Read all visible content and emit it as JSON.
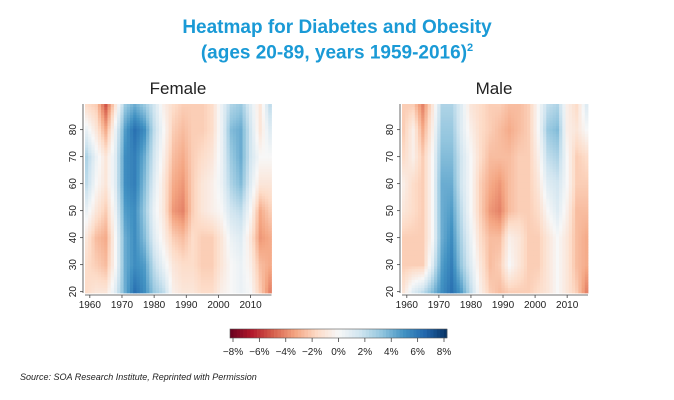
{
  "title_line1": "Heatmap for Diabetes and Obesity",
  "title_line2": "(ages 20-89, years 1959-2016)",
  "title_sup": "2",
  "source": "Source: SOA Research Institute, Reprinted with Permission",
  "chart_data": {
    "type": "heatmap",
    "x_range": [
      1959,
      2016
    ],
    "y_range": [
      20,
      89
    ],
    "x_ticks": [
      "1960",
      "1970",
      "1980",
      "1990",
      "2000",
      "2010"
    ],
    "y_ticks": [
      "20",
      "30",
      "40",
      "50",
      "60",
      "70",
      "80"
    ],
    "colorbar": {
      "range": [
        -8,
        8
      ],
      "ticks": [
        "−8%",
        "−6%",
        "−4%",
        "−2%",
        "0%",
        "2%",
        "4%",
        "6%",
        "8%"
      ],
      "colors": [
        "#67001f",
        "#b2182b",
        "#d6604d",
        "#f4a582",
        "#fddbc7",
        "#f7f7f7",
        "#d1e5f0",
        "#92c5de",
        "#4393c3",
        "#2166ac",
        "#053061"
      ]
    },
    "grid_years": [
      1959,
      1962,
      1965,
      1968,
      1971,
      1974,
      1977,
      1980,
      1983,
      1986,
      1989,
      1992,
      1995,
      1998,
      2001,
      2004,
      2007,
      2010,
      2013,
      2016
    ],
    "grid_ages": [
      20,
      30,
      40,
      50,
      60,
      70,
      80,
      89
    ],
    "panels": [
      {
        "name": "Female",
        "values": [
          [
            -1.5,
            -1,
            -1,
            1,
            4,
            6,
            5,
            3,
            2,
            -0.5,
            -1,
            -1,
            -1.5,
            -1.5,
            -0.5,
            0,
            0.5,
            0,
            -2,
            -4
          ],
          [
            -1.5,
            -2,
            -2.5,
            0,
            4,
            5,
            4.5,
            2,
            0.5,
            -1,
            -1.5,
            -1.5,
            -2,
            -2,
            -1,
            0,
            0.5,
            -0.5,
            -2.5,
            -3
          ],
          [
            -1,
            -2.5,
            -3,
            0,
            4,
            5,
            3.5,
            1,
            -0.5,
            -2,
            -2.5,
            -1.5,
            -2,
            -2,
            -1,
            0.5,
            1,
            -1,
            -3.5,
            -3
          ],
          [
            0.5,
            -1,
            -2,
            0.5,
            4.5,
            5,
            3,
            0.5,
            -1,
            -3.5,
            -4,
            -2,
            -1,
            -0.5,
            0,
            1.5,
            2,
            0,
            -3,
            -2
          ],
          [
            2,
            0,
            -1,
            1,
            5,
            5.5,
            3.5,
            1,
            -1,
            -3,
            -3.5,
            -2,
            -1,
            -0.5,
            0.5,
            2.5,
            3.5,
            1,
            -1,
            -1
          ],
          [
            2.5,
            0.5,
            -1,
            1,
            5,
            5.5,
            4,
            1.5,
            -0.5,
            -2.5,
            -3,
            -2,
            -1.5,
            -1,
            0.5,
            3,
            4,
            1.5,
            0,
            0
          ],
          [
            0.5,
            -1,
            -3,
            0.5,
            4.5,
            6,
            5,
            2,
            0,
            -2,
            -2.5,
            -2,
            -2,
            -1.5,
            0.5,
            3.5,
            4,
            1.5,
            -1,
            1
          ],
          [
            -1.5,
            -2,
            -5,
            -1,
            3,
            4,
            3,
            1.5,
            -0.5,
            -1.5,
            -2,
            -2,
            -2,
            -1.5,
            0.5,
            2.5,
            3,
            1,
            -1,
            2
          ]
        ]
      },
      {
        "name": "Male",
        "values": [
          [
            -1,
            1,
            2,
            3.5,
            5,
            6,
            4.5,
            2,
            -0.5,
            -2,
            -2.5,
            -2,
            -2,
            -2,
            -1.5,
            -1,
            0,
            -1,
            -2,
            -4
          ],
          [
            -2,
            -2,
            -2,
            1,
            4.5,
            5.5,
            3,
            1,
            -1,
            -2.5,
            -2,
            0,
            -1,
            -2,
            -2,
            -1,
            0,
            -1,
            -2.5,
            -3
          ],
          [
            -2,
            -2,
            -2,
            0,
            4,
            5,
            2.5,
            0.5,
            -1.5,
            -2.5,
            -2.5,
            -0.5,
            -1,
            -2,
            -2,
            -1,
            0,
            -1,
            -2.5,
            -3
          ],
          [
            -1,
            -1.5,
            -2,
            0,
            4,
            4.5,
            2,
            0,
            -2,
            -3.5,
            -4,
            -2.5,
            -2,
            -2,
            -1.5,
            0,
            1,
            -0.5,
            -2.5,
            -2.5
          ],
          [
            -0.5,
            -1.5,
            -2,
            0,
            4,
            4,
            1.5,
            0,
            -2,
            -3,
            -3.5,
            -2.5,
            -2,
            -2,
            -1,
            1,
            1.5,
            0,
            -2,
            -2
          ],
          [
            -1.5,
            -0.5,
            -2,
            0,
            3.5,
            3.5,
            1.5,
            0,
            -1.5,
            -2.5,
            -2.5,
            -2.5,
            -2,
            -2,
            -0.5,
            2,
            2.5,
            0,
            -2,
            -1.5
          ],
          [
            -2,
            -0.5,
            -3,
            -0.5,
            3,
            3,
            1,
            -0.5,
            -1.5,
            -2,
            -2.5,
            -3,
            -2.5,
            -2,
            0,
            3,
            3.5,
            -0.5,
            -1,
            0
          ],
          [
            -2,
            -2,
            -4,
            -1,
            2.5,
            2.5,
            1,
            -1,
            -1.5,
            -2,
            -2,
            -2.5,
            -2.5,
            -2,
            0,
            2,
            2.5,
            -0.5,
            -1.5,
            1
          ]
        ]
      }
    ]
  }
}
